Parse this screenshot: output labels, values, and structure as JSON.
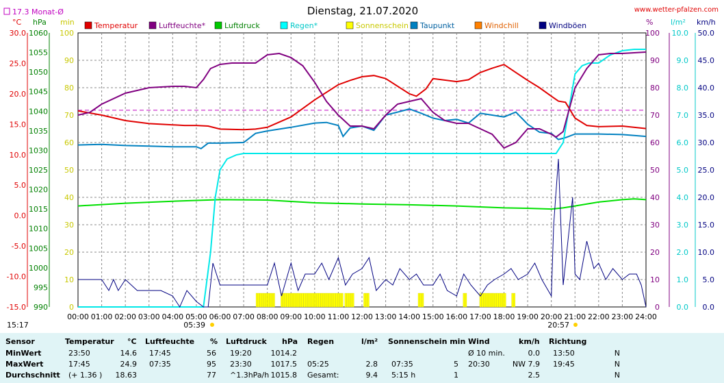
{
  "chart_data": {
    "type": "line",
    "title": "Dienstag, 21.07.2020",
    "source": "www.wetter-pfalzen.com",
    "month_avg_label": "17.3 Monat-Ø",
    "x_ticks": [
      "00:00",
      "01:00",
      "02:00",
      "03:00",
      "04:00",
      "05:00",
      "06:00",
      "07:00",
      "08:00",
      "09:00",
      "10:00",
      "11:00",
      "12:00",
      "13:00",
      "14:00",
      "15:00",
      "16:00",
      "17:00",
      "18:00",
      "19:00",
      "20:00",
      "21:00",
      "22:00",
      "23:00",
      "24:00"
    ],
    "sunrise": "05:39",
    "sunset": "20:57",
    "moon_time": "15:17",
    "axes": {
      "temp": {
        "unit": "°C",
        "min": -15,
        "max": 30,
        "ticks": [
          "30.0",
          "25.0",
          "20.0",
          "15.0",
          "10.0",
          "5.0",
          "0.0",
          "-5.0",
          "-10.0",
          "-15.0"
        ],
        "color": "#e00000"
      },
      "pressure": {
        "unit": "hPa",
        "min": 990,
        "max": 1060,
        "ticks": [
          "1060",
          "1055",
          "1050",
          "1045",
          "1040",
          "1035",
          "1030",
          "1025",
          "1020",
          "1015",
          "1010",
          "1005",
          "1000",
          "995",
          "990"
        ],
        "color": "#008000"
      },
      "minutes": {
        "unit": "min",
        "min": 0,
        "max": 100,
        "ticks": [
          "100",
          "90",
          "80",
          "70",
          "60",
          "50",
          "40",
          "30",
          "20",
          "10",
          "0"
        ],
        "color": "#c8c800"
      },
      "humidity": {
        "unit": "%",
        "min": 0,
        "max": 100,
        "ticks": [
          "100",
          "90",
          "80",
          "70",
          "60",
          "50",
          "40",
          "30",
          "20",
          "10",
          "0"
        ],
        "color": "#800080"
      },
      "rain": {
        "unit": "l/m²",
        "min": 0,
        "max": 10,
        "ticks": [
          "10.0",
          "9.0",
          "8.0",
          "7.0",
          "6.0",
          "5.0",
          "4.0",
          "3.0",
          "2.0",
          "1.0",
          "0.0"
        ],
        "color": "#00c8c8"
      },
      "wind": {
        "unit": "km/h",
        "min": 0,
        "max": 50,
        "ticks": [
          "50.0",
          "45.0",
          "40.0",
          "35.0",
          "30.0",
          "25.0",
          "20.0",
          "15.0",
          "10.0",
          "5.0",
          "0.0"
        ],
        "color": "#000080"
      }
    },
    "legend": [
      {
        "name": "Temperatur",
        "color": "#e00000",
        "text_color": "#e00000"
      },
      {
        "name": "Luftfeuchte*",
        "color": "#800080",
        "text_color": "#800080"
      },
      {
        "name": "Luftdruck",
        "color": "#00c800",
        "text_color": "#008000"
      },
      {
        "name": "Regen*",
        "color": "#00ffff",
        "text_color": "#00c8c8"
      },
      {
        "name": "Sonnenschein",
        "color": "#ffff00",
        "text_color": "#c8c800"
      },
      {
        "name": "Taupunkt",
        "color": "#0080c0",
        "text_color": "#0060a0"
      },
      {
        "name": "Windchill",
        "color": "#ff8000",
        "text_color": "#e06000"
      },
      {
        "name": "Windböen",
        "color": "#000080",
        "text_color": "#000080"
      }
    ],
    "month_avg_temp": 17.3,
    "series": {
      "temperature": {
        "x": [
          0,
          1,
          2,
          3,
          4,
          4.5,
          5,
          5.5,
          6,
          7,
          7.5,
          8,
          9,
          10,
          11,
          11.5,
          12,
          12.5,
          13,
          14,
          14.3,
          14.7,
          15,
          16,
          16.5,
          17,
          17.5,
          18,
          18.5,
          19,
          19.5,
          20,
          20.3,
          20.6,
          21,
          21.5,
          22,
          23,
          24
        ],
        "y": [
          17.2,
          16.5,
          15.6,
          15.1,
          14.9,
          14.8,
          14.8,
          14.7,
          14.2,
          14.1,
          14.2,
          14.5,
          16.2,
          19.0,
          21.5,
          22.2,
          22.8,
          23.0,
          22.5,
          20.0,
          19.6,
          20.8,
          22.5,
          22.0,
          22.3,
          23.5,
          24.2,
          24.8,
          23.5,
          22.2,
          21.0,
          19.6,
          18.8,
          18.6,
          16.0,
          14.8,
          14.6,
          14.7,
          14.3
        ]
      },
      "humidity": {
        "x": [
          0,
          0.5,
          1,
          2,
          3,
          4,
          4.5,
          5,
          5.3,
          5.6,
          6,
          6.5,
          7,
          7.5,
          8,
          8.5,
          9,
          9.5,
          10,
          10.5,
          11,
          11.5,
          12,
          12.5,
          13,
          13.5,
          14,
          14.5,
          15,
          15.5,
          16,
          16.5,
          17,
          17.5,
          18,
          18.5,
          19,
          19.5,
          20,
          20.2,
          20.5,
          21,
          21.5,
          22,
          22.5,
          23,
          24
        ],
        "y": [
          70,
          71,
          74,
          78,
          80,
          80.5,
          80.5,
          80,
          83,
          87,
          88.5,
          89,
          89,
          89,
          92,
          92.5,
          91,
          88,
          82,
          75,
          70,
          66,
          66,
          65,
          70,
          74,
          75,
          76,
          71,
          68,
          67,
          67,
          65,
          63,
          58,
          60,
          65,
          65,
          63,
          62,
          64,
          80,
          87,
          92,
          92.5,
          92.5,
          93
        ]
      },
      "pressure": {
        "x": [
          0,
          2,
          4,
          6,
          8,
          10,
          12,
          14,
          16,
          18,
          19,
          20,
          20.5,
          21,
          22,
          23,
          23.5,
          24
        ],
        "y": [
          1015.8,
          1016.5,
          1017.0,
          1017.4,
          1017.3,
          1016.6,
          1016.3,
          1016.1,
          1015.8,
          1015.3,
          1015.2,
          1015.0,
          1015.3,
          1015.8,
          1016.8,
          1017.4,
          1017.6,
          1017.4
        ]
      },
      "rain": {
        "x": [
          0,
          5.3,
          5.6,
          5.8,
          6.0,
          6.3,
          6.7,
          7.0,
          8.0,
          10,
          12,
          14,
          16,
          18,
          19,
          20,
          20.2,
          20.5,
          20.8,
          21.0,
          21.3,
          21.6,
          22.0,
          22.5,
          23.0,
          23.5,
          24
        ],
        "y": [
          0,
          0,
          2.0,
          4.0,
          5.0,
          5.4,
          5.55,
          5.6,
          5.6,
          5.6,
          5.6,
          5.6,
          5.6,
          5.6,
          5.6,
          5.6,
          5.6,
          6.0,
          7.5,
          8.5,
          8.8,
          8.9,
          8.9,
          9.2,
          9.35,
          9.4,
          9.4
        ]
      },
      "dewpoint": {
        "x": [
          0,
          1,
          2,
          3,
          4,
          5,
          5.2,
          5.5,
          6,
          7,
          7.5,
          8,
          9,
          10,
          10.5,
          11,
          11.2,
          11.5,
          12,
          12.5,
          13,
          13.5,
          14,
          14.5,
          15,
          15.5,
          16,
          16.5,
          17,
          17.5,
          18,
          18.5,
          19,
          19.5,
          20,
          20.3,
          20.6,
          21,
          22,
          23,
          24
        ],
        "y": [
          11.6,
          11.7,
          11.5,
          11.4,
          11.3,
          11.3,
          11.0,
          11.9,
          11.9,
          12.0,
          13.5,
          13.9,
          14.5,
          15.2,
          15.3,
          14.8,
          13.0,
          14.4,
          14.7,
          14.0,
          16.5,
          17.0,
          17.5,
          16.8,
          16.0,
          15.6,
          15.8,
          15.2,
          16.8,
          16.5,
          16.2,
          17.0,
          15.0,
          13.7,
          13.5,
          12.5,
          12.8,
          13.4,
          13.4,
          13.3,
          13.0
        ]
      },
      "wind_gusts": {
        "x": [
          0,
          1,
          1.3,
          1.5,
          1.7,
          2,
          2.5,
          3,
          3.5,
          4,
          4.3,
          4.6,
          5,
          5.3,
          5.5,
          5.7,
          6,
          6.3,
          6.6,
          7,
          7.5,
          8,
          8.3,
          8.6,
          9,
          9.3,
          9.6,
          10,
          10.3,
          10.6,
          11,
          11.3,
          11.6,
          12,
          12.3,
          12.6,
          13,
          13.3,
          13.6,
          14,
          14.3,
          14.6,
          15,
          15.3,
          15.6,
          16,
          16.3,
          16.6,
          17,
          17.3,
          17.6,
          18,
          18.3,
          18.6,
          19,
          19.3,
          19.6,
          20,
          20.1,
          20.3,
          20.5,
          20.7,
          20.9,
          21,
          21.2,
          21.5,
          21.8,
          22,
          22.3,
          22.6,
          23,
          23.3,
          23.6,
          23.8,
          24
        ],
        "y": [
          5,
          5,
          3,
          5,
          3,
          5,
          3,
          3,
          3,
          2,
          0,
          3,
          1,
          0,
          0,
          8,
          4,
          4,
          4,
          4,
          4,
          4,
          8,
          2,
          8,
          3,
          6,
          6,
          8,
          5,
          9,
          4,
          6,
          7,
          9,
          3,
          5,
          4,
          7,
          5,
          6,
          4,
          4,
          6,
          3,
          2,
          6,
          4,
          2,
          4,
          5,
          6,
          7,
          5,
          6,
          8,
          5,
          2,
          15,
          27,
          4,
          12,
          20,
          6,
          5,
          12,
          7,
          8,
          5,
          7,
          5,
          6,
          6,
          4,
          0
        ]
      },
      "sunshine": {
        "ranges": [
          [
            7.55,
            8.3
          ],
          [
            8.6,
            11.2
          ],
          [
            11.3,
            11.7
          ],
          [
            12.1,
            12.3
          ],
          [
            14.4,
            14.6
          ],
          [
            16.3,
            16.4
          ],
          [
            17.0,
            18.1
          ],
          [
            18.35,
            18.5
          ]
        ]
      }
    }
  },
  "stats_table": {
    "headers": {
      "sensor": "Sensor",
      "temp": "Temperatur",
      "temp_unit": "°C",
      "hum": "Luftfeuchte",
      "hum_unit": "%",
      "press": "Luftdruck",
      "press_unit": "hPa",
      "rain": "Regen",
      "rain_unit": "l/m²",
      "sun": "Sonnenschein min",
      "wind": "Wind",
      "wind_unit": "km/h",
      "dir": "Richtung"
    },
    "rows": [
      {
        "label": "MinWert",
        "temp_time": "23:50",
        "temp_val": "14.6",
        "hum_time": "17:45",
        "hum_val": "56",
        "press_time": "19:20",
        "press_val": "1014.2",
        "rain_time": "",
        "rain_val": "",
        "sun_time": "",
        "sun_val": "",
        "wind_time": "Ø 10 min.",
        "wind_val": "0.0",
        "dir_time": "13:50",
        "dir_val": "N"
      },
      {
        "label": "MaxWert",
        "temp_time": "17:45",
        "temp_val": "24.9",
        "hum_time": "07:35",
        "hum_val": "95",
        "press_time": "23:30",
        "press_val": "1017.5",
        "rain_time": "05:25",
        "rain_val": "2.8",
        "sun_time": "07:35",
        "sun_val": "5",
        "wind_time": "20:30",
        "wind_val": "NW 7.9",
        "dir_time": "19:45",
        "dir_val": "N"
      },
      {
        "label": "Durchschnitt",
        "temp_time": "(+ 1.36 )",
        "temp_val": "18.63",
        "hum_time": "",
        "hum_val": "77",
        "press_time": "^1.3hPa/h",
        "press_val": "1015.8",
        "rain_time": "Gesamt:",
        "rain_val": "9.4",
        "sun_time": "5:15 h",
        "sun_val": "1",
        "wind_time": "",
        "wind_val": "2.5",
        "dir_time": "",
        "dir_val": "N"
      }
    ]
  }
}
